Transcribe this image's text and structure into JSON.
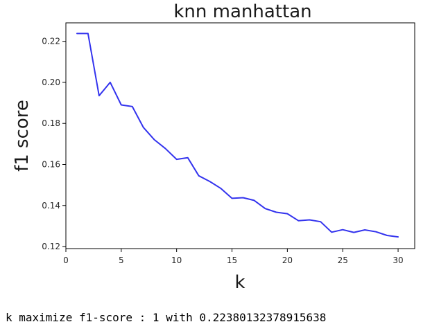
{
  "chart_data": {
    "type": "line",
    "title": "knn manhattan",
    "xlabel": "k",
    "ylabel": "f1 score",
    "xlim": [
      0,
      31.5
    ],
    "ylim": [
      0.119,
      0.229
    ],
    "xticks": [
      0,
      5,
      10,
      15,
      20,
      25,
      30
    ],
    "yticks": [
      0.12,
      0.14,
      0.16,
      0.18,
      0.2,
      0.22
    ],
    "ytick_labels": [
      "0.12",
      "0.14",
      "0.16",
      "0.18",
      "0.20",
      "0.22"
    ],
    "grid": false,
    "series": [
      {
        "color": "#3333ee",
        "x": [
          1,
          2,
          3,
          4,
          5,
          6,
          7,
          8,
          9,
          10,
          11,
          12,
          13,
          14,
          15,
          16,
          17,
          18,
          19,
          20,
          21,
          22,
          23,
          24,
          25,
          26,
          27,
          28,
          29,
          30
        ],
        "y": [
          0.2238,
          0.2238,
          0.1935,
          0.2,
          0.189,
          0.1882,
          0.178,
          0.172,
          0.1677,
          0.1625,
          0.1633,
          0.1545,
          0.1517,
          0.1483,
          0.1435,
          0.1438,
          0.1425,
          0.1385,
          0.1367,
          0.136,
          0.1326,
          0.133,
          0.1321,
          0.127,
          0.1282,
          0.1269,
          0.1281,
          0.1272,
          0.1254,
          0.1247
        ]
      }
    ]
  },
  "output": {
    "text": "k maximize f1-score : 1 with 0.22380132378915638"
  }
}
